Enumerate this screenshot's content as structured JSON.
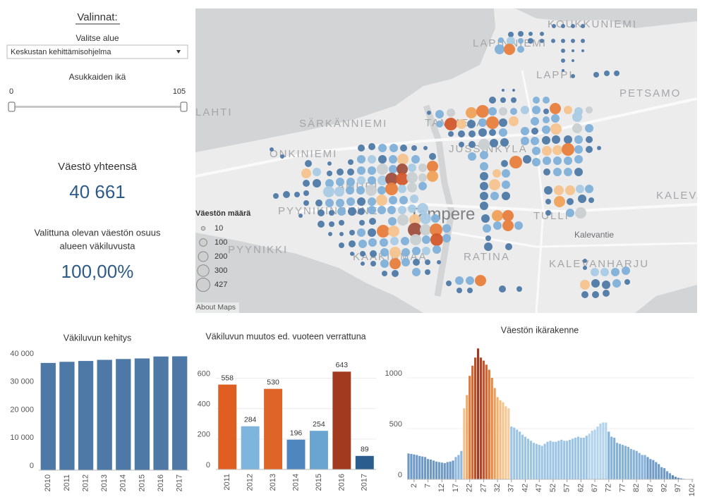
{
  "panel": {
    "title": "Valinnat:",
    "area_label": "Valitse alue",
    "area_value": "Keskustan kehittämisohjelma",
    "age_label": "Asukkaiden ikä",
    "age_min": 0,
    "age_max": 105
  },
  "kpis": [
    {
      "label": "Väestö yhteensä",
      "value": "40 661"
    },
    {
      "label_lines": [
        "Valittuna olevan väestön osuus",
        "alueen väkiluvusta"
      ],
      "value": "100,00%"
    }
  ],
  "map": {
    "places": [
      "KOUKKUNIEMI",
      "LAPINNIEMI",
      "LAPPI",
      "PETSAMO",
      "LAHTI",
      "SÄRKÄNNIEMI",
      "TAMMELA",
      "JUSSINKYLÄ",
      "ONKINIEMI",
      "AMURI",
      "PYYNIKINRINNE",
      "Tampere",
      "TULLI",
      "KALEVA",
      "Kalevantie",
      "PYYNIKKI",
      "KAAKINMAA",
      "RATINA",
      "KALEVANHARJU"
    ],
    "legend": {
      "title": "Väestön määrä",
      "sizes": [
        10,
        100,
        200,
        300,
        427
      ]
    },
    "attribution": "About Maps"
  },
  "chart_data": [
    {
      "type": "bar",
      "title": "Väkiluvun kehitys",
      "categories": [
        "2010",
        "2011",
        "2012",
        "2013",
        "2014",
        "2015",
        "2016",
        "2017"
      ],
      "values": [
        38300,
        38700,
        39000,
        39400,
        39700,
        39900,
        40600,
        40661
      ],
      "color": "#4e79a7",
      "ylim": [
        0,
        43300
      ],
      "yticks": [
        0,
        {
          "value": 10000,
          "label": "10 000"
        },
        {
          "value": 20000,
          "label": "20 000"
        },
        {
          "value": 30000,
          "label": "30 000"
        },
        {
          "value": 40000,
          "label": "40 000"
        }
      ],
      "grid": false
    },
    {
      "type": "bar",
      "title": "Väkiluvun muutos ed. vuoteen verrattuna",
      "categories": [
        "2011",
        "2012",
        "2013",
        "2014",
        "2015",
        "2016",
        "2017"
      ],
      "values": [
        558,
        284,
        530,
        196,
        254,
        643,
        89
      ],
      "colors": [
        "#df5f22",
        "#7fb4dc",
        "#df6427",
        "#4f86bd",
        "#6aa4d1",
        "#a23a20",
        "#2c5d8f"
      ],
      "ylim": [
        0,
        760
      ],
      "yticks": [
        0,
        200,
        400,
        600
      ],
      "data_labels": true,
      "grid": true
    },
    {
      "type": "histogram",
      "title": "Väestön ikärakenne",
      "x": [
        0,
        1,
        2,
        3,
        4,
        5,
        6,
        7,
        8,
        9,
        10,
        11,
        12,
        13,
        14,
        15,
        16,
        17,
        18,
        19,
        20,
        21,
        22,
        23,
        24,
        25,
        26,
        27,
        28,
        29,
        30,
        31,
        32,
        33,
        34,
        35,
        36,
        37,
        38,
        39,
        40,
        41,
        42,
        43,
        44,
        45,
        46,
        47,
        48,
        49,
        50,
        51,
        52,
        53,
        54,
        55,
        56,
        57,
        58,
        59,
        60,
        61,
        62,
        63,
        64,
        65,
        66,
        67,
        68,
        69,
        70,
        71,
        72,
        73,
        74,
        75,
        76,
        77,
        78,
        79,
        80,
        81,
        82,
        83,
        84,
        85,
        86,
        87,
        88,
        89,
        90,
        91,
        92,
        93,
        94,
        95,
        96,
        97,
        98,
        99,
        100,
        101,
        102
      ],
      "values": [
        255,
        250,
        245,
        240,
        230,
        225,
        220,
        200,
        195,
        185,
        175,
        170,
        165,
        160,
        170,
        175,
        185,
        220,
        240,
        280,
        700,
        830,
        1020,
        1120,
        1200,
        1290,
        1200,
        1170,
        1130,
        1080,
        1000,
        900,
        810,
        780,
        760,
        720,
        700,
        520,
        510,
        490,
        470,
        440,
        420,
        400,
        380,
        360,
        350,
        340,
        330,
        350,
        370,
        380,
        370,
        370,
        380,
        390,
        380,
        380,
        390,
        400,
        410,
        420,
        410,
        410,
        430,
        450,
        480,
        490,
        520,
        550,
        560,
        560,
        470,
        420,
        410,
        360,
        350,
        340,
        330,
        320,
        300,
        290,
        280,
        260,
        240,
        240,
        220,
        200,
        190,
        170,
        150,
        120,
        110,
        80,
        60,
        40,
        25,
        15,
        10,
        5,
        3,
        2,
        1
      ],
      "colors": [
        "#6d99c4",
        "#6d99c4",
        "#6d99c4",
        "#6d99c4",
        "#6d99c4",
        "#6d99c4",
        "#6d99c4",
        "#6d99c4",
        "#6d99c4",
        "#6d99c4",
        "#6d99c4",
        "#6d99c4",
        "#6d99c4",
        "#6d99c4",
        "#6d99c4",
        "#6d99c4",
        "#6d99c4",
        "#8fb8dc",
        "#8fb8dc",
        "#8fb8dc",
        "#f3c38e",
        "#eeaa65",
        "#e0793a",
        "#d46a33",
        "#bb4f28",
        "#9c3a22",
        "#b04526",
        "#c2552b",
        "#cf6430",
        "#db7536",
        "#e48a45",
        "#eba05a",
        "#efb26f",
        "#f2bd80",
        "#f3c58d",
        "#f3c995",
        "#f2cd9e",
        "#9cc4e4",
        "#9cc4e4",
        "#9cc4e4",
        "#9cc4e4",
        "#9cc4e4",
        "#9cc4e4",
        "#9cc4e4",
        "#9cc4e4",
        "#9cc4e4",
        "#9cc4e4",
        "#9cc4e4",
        "#9cc4e4",
        "#9cc4e4",
        "#9cc4e4",
        "#9cc4e4",
        "#9cc4e4",
        "#9cc4e4",
        "#9cc4e4",
        "#9cc4e4",
        "#9cc4e4",
        "#9cc4e4",
        "#9cc4e4",
        "#9cc4e4",
        "#9cc4e4",
        "#9cc4e4",
        "#9cc4e4",
        "#9cc4e4",
        "#9cc4e4",
        "#b3d3ec",
        "#b3d3ec",
        "#b3d3ec",
        "#b3d3ec",
        "#b3d3ec",
        "#b3d3ec",
        "#b3d3ec",
        "#85b1d9",
        "#85b1d9",
        "#85b1d9",
        "#85b1d9",
        "#85b1d9",
        "#85b1d9",
        "#85b1d9",
        "#85b1d9",
        "#85b1d9",
        "#85b1d9",
        "#85b1d9",
        "#85b1d9",
        "#85b1d9",
        "#85b1d9",
        "#6f9bc6",
        "#6f9bc6",
        "#6f9bc6",
        "#6f9bc6",
        "#6f9bc6",
        "#6f9bc6",
        "#6f9bc6",
        "#6f9bc6",
        "#6f9bc6",
        "#5a86b3",
        "#5a86b3",
        "#5a86b3",
        "#5a86b3",
        "#5a86b3",
        "#5a86b3",
        "#5a86b3",
        "#5a86b3"
      ],
      "xlim": [
        -0.5,
        102.5
      ],
      "xticks": [
        2,
        7,
        12,
        17,
        22,
        27,
        32,
        37,
        42,
        47,
        52,
        57,
        62,
        67,
        72,
        77,
        82,
        87,
        92,
        97,
        102
      ],
      "ylim": [
        0,
        1320
      ],
      "yticks": [
        0,
        500,
        1000
      ],
      "grid": true
    }
  ]
}
